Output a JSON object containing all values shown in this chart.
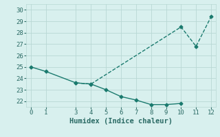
{
  "line1_x": [
    0,
    1,
    3,
    4,
    5,
    6,
    7,
    8,
    9,
    10
  ],
  "line1_y": [
    25.0,
    24.6,
    23.6,
    23.5,
    23.0,
    22.4,
    22.1,
    21.7,
    21.7,
    21.8
  ],
  "line2_x": [
    3,
    4,
    10,
    11,
    12
  ],
  "line2_y": [
    23.6,
    23.5,
    28.5,
    26.8,
    29.4
  ],
  "color": "#1a7a6e",
  "bg_color": "#d8f0ee",
  "grid_color": "#b8d8d4",
  "xlabel": "Humidex (Indice chaleur)",
  "xlim": [
    -0.3,
    12.3
  ],
  "ylim": [
    21.5,
    30.5
  ],
  "yticks": [
    22,
    23,
    24,
    25,
    26,
    27,
    28,
    29,
    30
  ],
  "xticks": [
    0,
    1,
    3,
    4,
    5,
    6,
    7,
    8,
    9,
    10,
    11,
    12
  ],
  "markersize": 2.5,
  "linewidth": 1.0,
  "xlabel_fontsize": 7.5,
  "tick_fontsize": 6.5,
  "label_color": "#2a6a64"
}
